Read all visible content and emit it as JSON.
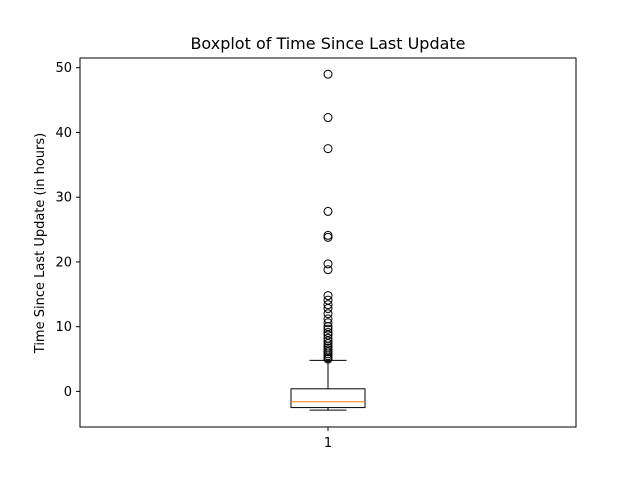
{
  "chart_data": {
    "type": "boxplot",
    "title": "Boxplot of Time Since Last Update",
    "xlabel": "",
    "ylabel": "Time Since Last Update (in hours)",
    "categories": [
      "1"
    ],
    "ylim": [
      -5.5,
      51.5
    ],
    "yticks": [
      0,
      10,
      20,
      30,
      40,
      50
    ],
    "grid": false,
    "box": {
      "whisker_low": -2.9,
      "q1": -2.5,
      "median": -1.6,
      "q3": 0.4,
      "whisker_high": 4.8
    },
    "outliers": [
      49.0,
      42.3,
      37.5,
      27.8,
      24.1,
      23.8,
      19.7,
      18.8,
      14.8,
      14.1,
      13.4,
      12.8,
      12.0,
      11.2,
      10.6,
      10.0,
      9.6,
      9.1,
      8.7,
      8.2,
      7.8,
      7.4,
      7.0,
      6.7,
      6.4,
      6.1,
      5.8,
      5.5,
      5.2,
      5.0
    ],
    "colors": {
      "box": "#000000",
      "median": "#ff7f0e",
      "outlier": "#000000"
    }
  }
}
